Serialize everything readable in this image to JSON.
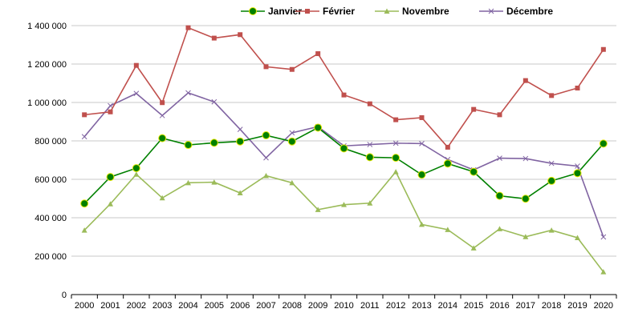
{
  "chart_data": {
    "type": "line",
    "title": "",
    "xlabel": "",
    "ylabel": "",
    "ylim": [
      0,
      1400000
    ],
    "yticks": [
      0,
      200000,
      400000,
      600000,
      800000,
      1000000,
      1200000,
      1400000
    ],
    "ytick_labels": [
      "0",
      "200 000",
      "400 000",
      "600 000",
      "800 000",
      "1 000 000",
      "1 200 000",
      "1 400 000"
    ],
    "grid": true,
    "legend_position": "top",
    "x": [
      "2000",
      "2001",
      "2002",
      "2003",
      "2004",
      "2005",
      "2006",
      "2007",
      "2008",
      "2009",
      "2010",
      "2011",
      "2012",
      "2013",
      "2014",
      "2015",
      "2016",
      "2017",
      "2018",
      "2019",
      "2020"
    ],
    "series": [
      {
        "name": "Janvier",
        "color": "#008000",
        "marker": "circle",
        "values": [
          474000,
          612000,
          658000,
          814000,
          779000,
          790000,
          797000,
          829000,
          797000,
          869000,
          761000,
          715000,
          712000,
          624000,
          682000,
          639000,
          514000,
          499000,
          592000,
          632000,
          786000
        ]
      },
      {
        "name": "Février",
        "color": "#C0504D",
        "marker": "square",
        "values": [
          936000,
          951000,
          1193000,
          999000,
          1389000,
          1335000,
          1353000,
          1186000,
          1172000,
          1254000,
          1039000,
          993000,
          910000,
          921000,
          767000,
          964000,
          936000,
          1114000,
          1036000,
          1075000,
          1276000
        ]
      },
      {
        "name": "Novembre",
        "color": "#9BBB59",
        "marker": "triangle",
        "values": [
          335000,
          472000,
          626000,
          503000,
          582000,
          585000,
          529000,
          619000,
          582000,
          442000,
          468000,
          476000,
          639000,
          365000,
          338000,
          242000,
          342000,
          301000,
          335000,
          296000,
          118000
        ]
      },
      {
        "name": "Décembre",
        "color": "#8064A2",
        "marker": "x",
        "values": [
          822000,
          983000,
          1047000,
          932000,
          1050000,
          1003000,
          860000,
          712000,
          842000,
          874000,
          774000,
          781000,
          788000,
          786000,
          703000,
          649000,
          710000,
          708000,
          683000,
          669000,
          300000
        ]
      }
    ]
  }
}
